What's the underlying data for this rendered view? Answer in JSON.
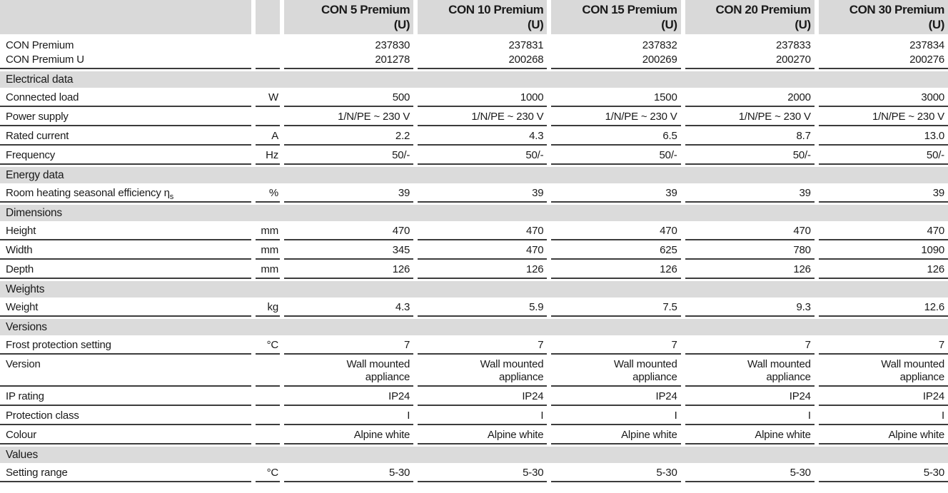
{
  "colors": {
    "header_bg": "#d9d9d9",
    "section_bg": "#dbdbdb",
    "rule": "#3c3c3c",
    "text": "#1a1a1a",
    "page_bg": "#ffffff"
  },
  "table": {
    "header": {
      "products": [
        {
          "name": "CON 5 Premium",
          "suffix": "(U)"
        },
        {
          "name": "CON 10 Premium",
          "suffix": "(U)"
        },
        {
          "name": "CON 15 Premium",
          "suffix": "(U)"
        },
        {
          "name": "CON 20 Premium",
          "suffix": "(U)"
        },
        {
          "name": "CON 30 Premium",
          "suffix": "(U)"
        }
      ]
    },
    "rows": [
      {
        "kind": "data",
        "underline": false,
        "label": "CON Premium",
        "unit": "",
        "values": [
          "237830",
          "237831",
          "237832",
          "237833",
          "237834"
        ]
      },
      {
        "kind": "data",
        "tight": true,
        "label": "CON Premium U",
        "unit": "",
        "values": [
          "201278",
          "200268",
          "200269",
          "200270",
          "200276"
        ]
      },
      {
        "kind": "section",
        "label": "Electrical data"
      },
      {
        "kind": "data",
        "label": "Connected load",
        "unit": "W",
        "values": [
          "500",
          "1000",
          "1500",
          "2000",
          "3000"
        ]
      },
      {
        "kind": "data",
        "label": "Power supply",
        "unit": "",
        "values": [
          "1/N/PE ~ 230 V",
          "1/N/PE ~ 230 V",
          "1/N/PE ~ 230 V",
          "1/N/PE ~ 230 V",
          "1/N/PE ~ 230 V"
        ]
      },
      {
        "kind": "data",
        "label": "Rated current",
        "unit": "A",
        "values": [
          "2.2",
          "4.3",
          "6.5",
          "8.7",
          "13.0"
        ]
      },
      {
        "kind": "data",
        "label": "Frequency",
        "unit": "Hz",
        "values": [
          "50/-",
          "50/-",
          "50/-",
          "50/-",
          "50/-"
        ]
      },
      {
        "kind": "section",
        "label": "Energy data"
      },
      {
        "kind": "data",
        "label": "Room heating seasonal efficiency η",
        "label_sub": "s",
        "unit": "%",
        "values": [
          "39",
          "39",
          "39",
          "39",
          "39"
        ]
      },
      {
        "kind": "section",
        "label": "Dimensions"
      },
      {
        "kind": "data",
        "label": "Height",
        "unit": "mm",
        "values": [
          "470",
          "470",
          "470",
          "470",
          "470"
        ]
      },
      {
        "kind": "data",
        "label": "Width",
        "unit": "mm",
        "values": [
          "345",
          "470",
          "625",
          "780",
          "1090"
        ]
      },
      {
        "kind": "data",
        "label": "Depth",
        "unit": "mm",
        "values": [
          "126",
          "126",
          "126",
          "126",
          "126"
        ]
      },
      {
        "kind": "section",
        "label": "Weights"
      },
      {
        "kind": "data",
        "label": "Weight",
        "unit": "kg",
        "values": [
          "4.3",
          "5.9",
          "7.5",
          "9.3",
          "12.6"
        ]
      },
      {
        "kind": "section",
        "label": "Versions"
      },
      {
        "kind": "data",
        "label": "Frost protection setting",
        "unit": "°C",
        "values": [
          "7",
          "7",
          "7",
          "7",
          "7"
        ]
      },
      {
        "kind": "data",
        "label": "Version",
        "unit": "",
        "values": [
          "Wall mounted\nappliance",
          "Wall mounted\nappliance",
          "Wall mounted\nappliance",
          "Wall mounted\nappliance",
          "Wall mounted\nappliance"
        ]
      },
      {
        "kind": "data",
        "label": "IP rating",
        "unit": "",
        "values": [
          "IP24",
          "IP24",
          "IP24",
          "IP24",
          "IP24"
        ]
      },
      {
        "kind": "data",
        "label": "Protection class",
        "unit": "",
        "values": [
          "I",
          "I",
          "I",
          "I",
          "I"
        ]
      },
      {
        "kind": "data",
        "label": "Colour",
        "unit": "",
        "values": [
          "Alpine white",
          "Alpine white",
          "Alpine white",
          "Alpine white",
          "Alpine white"
        ]
      },
      {
        "kind": "section",
        "label": "Values"
      },
      {
        "kind": "data",
        "label": "Setting range",
        "unit": "°C",
        "values": [
          "5-30",
          "5-30",
          "5-30",
          "5-30",
          "5-30"
        ]
      }
    ]
  }
}
